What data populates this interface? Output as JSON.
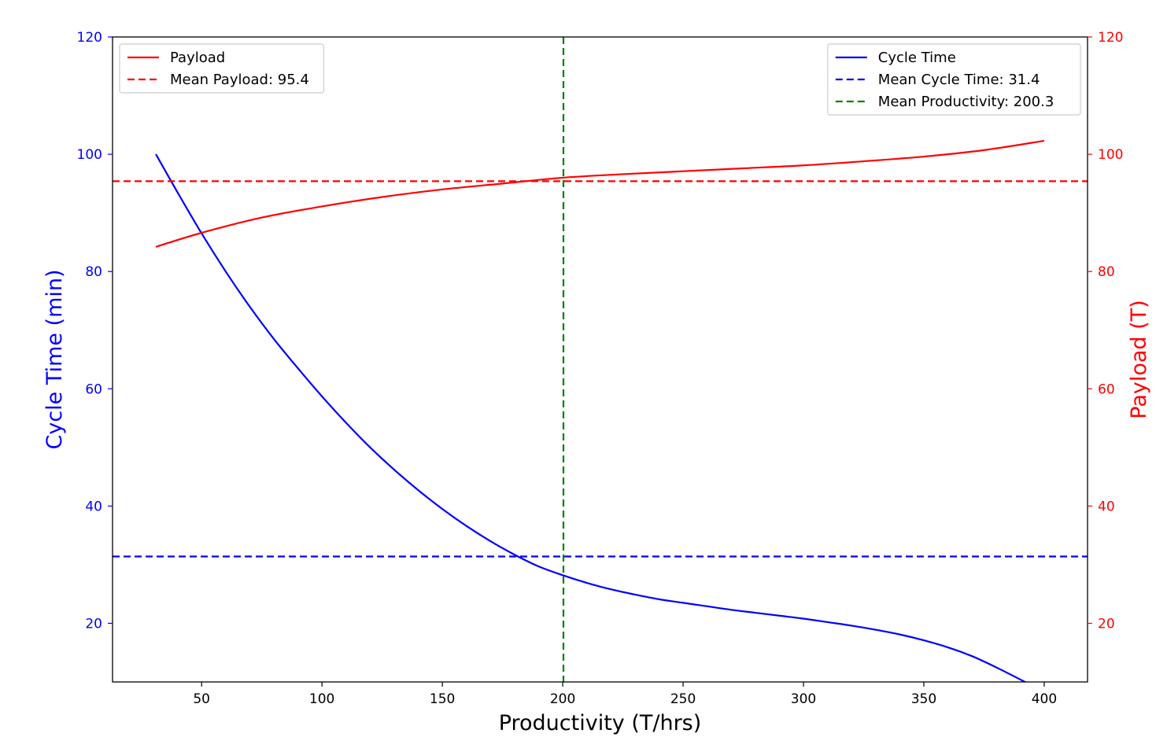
{
  "chart_data": {
    "type": "line",
    "xlabel": "Productivity (T/hrs)",
    "ylabel_left": "Cycle Time (min)",
    "ylabel_right": "Payload (T)",
    "xlim": [
      13,
      418
    ],
    "ylim_left": [
      10,
      120
    ],
    "ylim_right": [
      10,
      120
    ],
    "x_ticks": [
      50,
      100,
      150,
      200,
      250,
      300,
      350,
      400
    ],
    "y_ticks_left": [
      20,
      40,
      60,
      80,
      100,
      120
    ],
    "y_ticks_right": [
      20,
      40,
      60,
      80,
      100,
      120
    ],
    "grid": false,
    "colors": {
      "cycle": "#0000ff",
      "payload": "#ff0000",
      "productivity": "#008000",
      "left_axis": "#0000ff",
      "right_axis": "#ff0000"
    },
    "series": [
      {
        "name": "Cycle Time",
        "axis": "left",
        "style": "solid",
        "x": [
          31,
          40,
          50,
          60,
          70,
          80,
          90,
          100,
          110,
          120,
          130,
          140,
          150,
          160,
          170,
          180,
          190,
          200,
          210,
          220,
          230,
          240,
          250,
          260,
          270,
          280,
          290,
          300,
          310,
          320,
          330,
          340,
          350,
          360,
          370,
          380,
          393
        ],
        "y": [
          100,
          93.5,
          86.5,
          80,
          74,
          68.5,
          63.5,
          58.7,
          54.2,
          50,
          46.2,
          42.7,
          39.5,
          36.6,
          34,
          31.7,
          29.7,
          28.2,
          26.9,
          25.8,
          24.9,
          24.1,
          23.5,
          22.9,
          22.3,
          21.8,
          21.3,
          20.8,
          20.2,
          19.6,
          18.9,
          18.1,
          17.1,
          15.9,
          14.4,
          12.5,
          9.8
        ]
      },
      {
        "name": "Payload",
        "axis": "right",
        "style": "solid",
        "x": [
          31,
          50,
          75,
          100,
          125,
          150,
          175,
          200,
          225,
          250,
          275,
          300,
          325,
          350,
          375,
          400
        ],
        "y": [
          84.2,
          86.6,
          89.2,
          91.1,
          92.7,
          94,
          95,
          96,
          96.6,
          97.1,
          97.6,
          98.1,
          98.8,
          99.6,
          100.7,
          102.3
        ]
      },
      {
        "name": "Mean Payload: 95.4",
        "axis": "right",
        "style": "dashed",
        "orientation": "horizontal",
        "value": 95.4
      },
      {
        "name": "Mean Cycle Time: 31.4",
        "axis": "left",
        "style": "dashed",
        "orientation": "horizontal",
        "value": 31.4
      },
      {
        "name": "Mean Productivity: 200.3",
        "axis": "x",
        "style": "dashed",
        "orientation": "vertical",
        "value": 200.3
      }
    ],
    "legends": [
      {
        "placement": "top-left",
        "entries": [
          "Payload",
          "Mean Payload: 95.4"
        ]
      },
      {
        "placement": "top-right",
        "entries": [
          "Cycle Time",
          "Mean Cycle Time: 31.4",
          "Mean Productivity: 200.3"
        ]
      }
    ]
  }
}
